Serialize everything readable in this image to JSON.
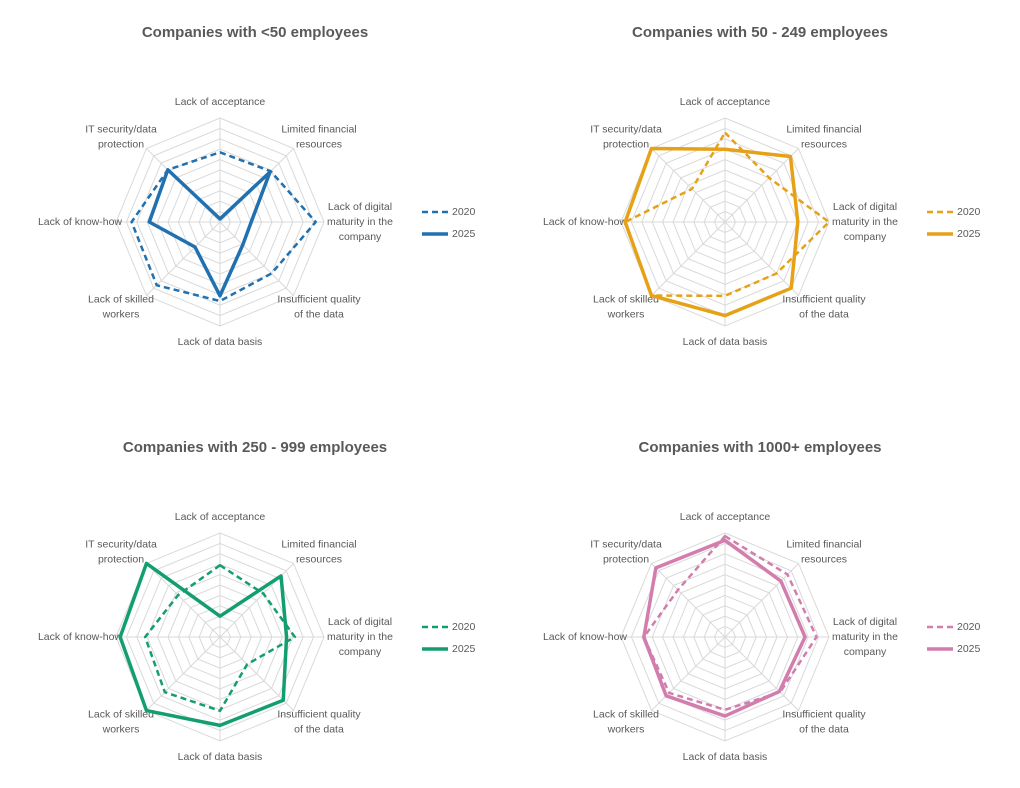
{
  "chart_data": [
    {
      "type": "radar",
      "title": "Companies with <50 employees",
      "categories": [
        [
          "Lack of acceptance"
        ],
        [
          "Limited financial",
          "resources"
        ],
        [
          "Lack of digital",
          "maturity in the",
          "company"
        ],
        [
          "Insufficient quality",
          "of the data"
        ],
        [
          "Lack of data basis"
        ],
        [
          "Lack of skilled",
          "workers"
        ],
        [
          "Lack of know-how"
        ],
        [
          "IT security/data",
          "protection"
        ]
      ],
      "rlim": [
        0,
        10
      ],
      "rticks": [
        1,
        2,
        3,
        4,
        5,
        6,
        7,
        8,
        9,
        10
      ],
      "series": [
        {
          "name": "2020",
          "color": "#2170b0",
          "dash": true,
          "values": [
            6.7,
            6.9,
            9.2,
            7.0,
            7.6,
            8.6,
            8.5,
            7.1
          ]
        },
        {
          "name": "2025",
          "color": "#2170b0",
          "dash": false,
          "values": [
            0.3,
            6.8,
            3.0,
            3.1,
            7.1,
            3.4,
            6.8,
            7.1
          ]
        }
      ]
    },
    {
      "type": "radar",
      "title": "Companies with 50 - 249 employees",
      "categories": [
        [
          "Lack of acceptance"
        ],
        [
          "Limited financial",
          "resources"
        ],
        [
          "Lack of digital",
          "maturity in the",
          "company"
        ],
        [
          "Insufficient quality",
          "of the data"
        ],
        [
          "Lack of data basis"
        ],
        [
          "Lack of skilled",
          "workers"
        ],
        [
          "Lack of know-how"
        ],
        [
          "IT security/data",
          "protection"
        ]
      ],
      "rlim": [
        0,
        10
      ],
      "rticks": [
        1,
        2,
        3,
        4,
        5,
        6,
        7,
        8,
        9,
        10
      ],
      "series": [
        {
          "name": "2020",
          "color": "#e6a117",
          "dash": true,
          "values": [
            8.6,
            6.0,
            10.0,
            7.0,
            7.1,
            10.0,
            9.6,
            4.5
          ]
        },
        {
          "name": "2025",
          "color": "#e6a117",
          "dash": false,
          "values": [
            7.0,
            8.9,
            7.0,
            9.0,
            9.0,
            10.0,
            9.6,
            10.0
          ]
        }
      ]
    },
    {
      "type": "radar",
      "title": "Companies with 250 - 999 employees",
      "categories": [
        [
          "Lack of acceptance"
        ],
        [
          "Limited financial",
          "resources"
        ],
        [
          "Lack of digital",
          "maturity in the",
          "company"
        ],
        [
          "Insufficient quality",
          "of the data"
        ],
        [
          "Lack of data basis"
        ],
        [
          "Lack of skilled",
          "workers"
        ],
        [
          "Lack of know-how"
        ],
        [
          "IT security/data",
          "protection"
        ]
      ],
      "rlim": [
        0,
        10
      ],
      "rticks": [
        1,
        2,
        3,
        4,
        5,
        6,
        7,
        8,
        9,
        10
      ],
      "series": [
        {
          "name": "2020",
          "color": "#139f6d",
          "dash": true,
          "values": [
            6.9,
            5.9,
            7.2,
            3.7,
            7.1,
            7.5,
            7.2,
            5.7
          ]
        },
        {
          "name": "2025",
          "color": "#139f6d",
          "dash": false,
          "values": [
            2.0,
            8.3,
            6.4,
            8.6,
            8.5,
            10.0,
            9.6,
            10.0
          ]
        }
      ]
    },
    {
      "type": "radar",
      "title": "Companies with 1000+ employees",
      "categories": [
        [
          "Lack of acceptance"
        ],
        [
          "Limited financial",
          "resources"
        ],
        [
          "Lack of digital",
          "maturity in the",
          "company"
        ],
        [
          "Insufficient quality",
          "of the data"
        ],
        [
          "Lack of data basis"
        ],
        [
          "Lack of skilled",
          "workers"
        ],
        [
          "Lack of know-how"
        ],
        [
          "IT security/data",
          "protection"
        ]
      ],
      "rlim": [
        0,
        10
      ],
      "rticks": [
        1,
        2,
        3,
        4,
        5,
        6,
        7,
        8,
        9,
        10
      ],
      "series": [
        {
          "name": "2020",
          "color": "#d27dae",
          "dash": true,
          "values": [
            9.7,
            8.5,
            8.8,
            7.5,
            7.0,
            7.6,
            7.8,
            6.4
          ]
        },
        {
          "name": "2025",
          "color": "#d27dae",
          "dash": false,
          "values": [
            9.3,
            7.6,
            7.7,
            7.4,
            7.6,
            8.0,
            7.8,
            9.4
          ]
        }
      ]
    }
  ]
}
